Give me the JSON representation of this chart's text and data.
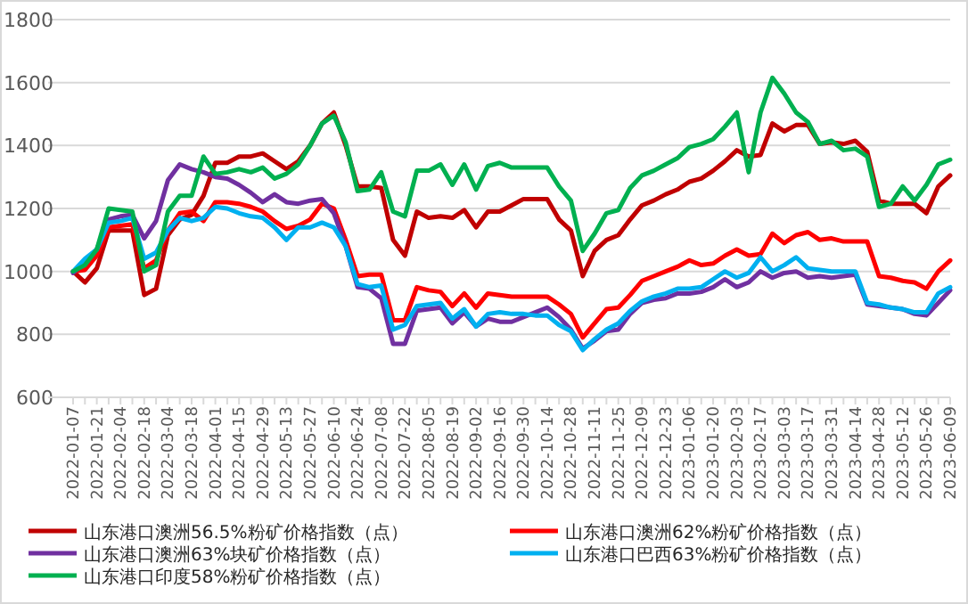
{
  "chart_data": {
    "type": "line",
    "categories": [
      "2022-01-07",
      null,
      "2022-01-21",
      null,
      "2022-02-04",
      null,
      "2022-02-18",
      null,
      "2022-03-04",
      null,
      "2022-03-18",
      null,
      "2022-04-01",
      null,
      "2022-04-15",
      null,
      "2022-04-29",
      null,
      "2022-05-13",
      null,
      "2022-05-27",
      null,
      "2022-06-10",
      null,
      "2022-06-24",
      null,
      "2022-07-08",
      null,
      "2022-07-22",
      null,
      "2022-08-05",
      null,
      "2022-08-19",
      null,
      "2022-09-02",
      null,
      "2022-09-16",
      null,
      "2022-09-30",
      null,
      "2022-10-14",
      null,
      "2022-10-28",
      null,
      "2022-11-11",
      null,
      "2022-11-25",
      null,
      "2022-12-09",
      null,
      "2022-12-23",
      null,
      "2023-01-06",
      null,
      "2023-01-20",
      null,
      "2023-02-03",
      null,
      "2023-02-17",
      null,
      "2023-03-03",
      null,
      "2023-03-17",
      null,
      "2023-03-31",
      null,
      "2023-04-14",
      null,
      "2023-04-28",
      null,
      "2023-05-12",
      null,
      "2023-05-26",
      null,
      "2023-06-09"
    ],
    "series": [
      {
        "name": "山东港口澳洲56.5%粉矿价格指数（点）",
        "color": "#c00000",
        "values": [
          1000,
          965,
          1010,
          1130,
          1130,
          1130,
          925,
          945,
          1115,
          1165,
          1180,
          1240,
          1345,
          1345,
          1365,
          1365,
          1375,
          1350,
          1325,
          1350,
          1400,
          1470,
          1505,
          1400,
          1270,
          1270,
          1265,
          1100,
          1050,
          1190,
          1170,
          1175,
          1170,
          1195,
          1140,
          1190,
          1190,
          1210,
          1230,
          1230,
          1230,
          1165,
          1130,
          985,
          1065,
          1100,
          1115,
          1165,
          1210,
          1225,
          1245,
          1260,
          1285,
          1295,
          1320,
          1350,
          1385,
          1365,
          1370,
          1470,
          1445,
          1465,
          1465,
          1405,
          1410,
          1405,
          1415,
          1380,
          1225,
          1215,
          1215,
          1215,
          1185,
          1270,
          1305
        ]
      },
      {
        "name": "山东港口澳洲62%粉矿价格指数（点）",
        "color": "#ff0000",
        "values": [
          1000,
          1005,
          1050,
          1140,
          1145,
          1150,
          1010,
          1035,
          1130,
          1185,
          1190,
          1160,
          1220,
          1220,
          1215,
          1205,
          1190,
          1160,
          1135,
          1145,
          1165,
          1215,
          1200,
          1100,
          985,
          990,
          990,
          845,
          845,
          950,
          940,
          935,
          890,
          930,
          885,
          930,
          925,
          920,
          920,
          920,
          920,
          895,
          865,
          790,
          835,
          880,
          885,
          925,
          970,
          985,
          1000,
          1015,
          1035,
          1020,
          1025,
          1050,
          1070,
          1050,
          1055,
          1120,
          1090,
          1115,
          1125,
          1100,
          1105,
          1095,
          1095,
          1095,
          985,
          980,
          970,
          965,
          945,
          1000,
          1035
        ]
      },
      {
        "name": "山东港口澳洲63%块矿价格指数（点）",
        "color": "#7030a0",
        "values": [
          995,
          1030,
          1070,
          1165,
          1175,
          1180,
          1105,
          1160,
          1290,
          1340,
          1325,
          1315,
          1300,
          1295,
          1275,
          1250,
          1220,
          1245,
          1220,
          1215,
          1225,
          1230,
          1185,
          1080,
          950,
          945,
          915,
          770,
          770,
          875,
          880,
          885,
          835,
          870,
          825,
          850,
          840,
          840,
          855,
          870,
          885,
          855,
          815,
          755,
          780,
          810,
          815,
          865,
          900,
          910,
          915,
          930,
          930,
          935,
          950,
          975,
          950,
          965,
          1000,
          980,
          995,
          1000,
          980,
          985,
          980,
          985,
          990,
          895,
          890,
          885,
          880,
          865,
          860,
          900,
          940
        ]
      },
      {
        "name": "山东港口巴西63%粉矿价格指数（点）",
        "color": "#00b0f0",
        "values": [
          1000,
          1040,
          1070,
          1155,
          1160,
          1170,
          1040,
          1060,
          1130,
          1170,
          1160,
          1170,
          1205,
          1200,
          1185,
          1175,
          1170,
          1140,
          1100,
          1140,
          1140,
          1155,
          1140,
          1080,
          960,
          950,
          955,
          815,
          830,
          890,
          895,
          900,
          850,
          880,
          825,
          865,
          870,
          865,
          865,
          860,
          860,
          830,
          810,
          750,
          785,
          815,
          835,
          875,
          905,
          920,
          930,
          945,
          945,
          950,
          975,
          1000,
          980,
          995,
          1045,
          1000,
          1020,
          1045,
          1010,
          1005,
          1000,
          1000,
          1000,
          900,
          895,
          885,
          880,
          870,
          870,
          930,
          950
        ]
      },
      {
        "name": "山东港口印度58%粉矿价格指数（点）",
        "color": "#00b050",
        "values": [
          1000,
          1020,
          1070,
          1200,
          1195,
          1190,
          1000,
          1020,
          1190,
          1240,
          1240,
          1365,
          1310,
          1315,
          1325,
          1315,
          1330,
          1295,
          1310,
          1340,
          1400,
          1470,
          1495,
          1410,
          1255,
          1260,
          1315,
          1190,
          1175,
          1320,
          1320,
          1340,
          1275,
          1340,
          1260,
          1335,
          1345,
          1330,
          1330,
          1330,
          1330,
          1270,
          1225,
          1065,
          1120,
          1185,
          1195,
          1265,
          1305,
          1320,
          1340,
          1360,
          1395,
          1405,
          1420,
          1460,
          1505,
          1315,
          1505,
          1615,
          1565,
          1505,
          1475,
          1405,
          1415,
          1385,
          1390,
          1365,
          1205,
          1215,
          1270,
          1225,
          1275,
          1340,
          1355
        ]
      }
    ],
    "ylim": [
      600,
      1800
    ],
    "yticks": [
      600,
      800,
      1000,
      1200,
      1400,
      1600,
      1800
    ],
    "grid": "y",
    "legend": "bottom"
  }
}
